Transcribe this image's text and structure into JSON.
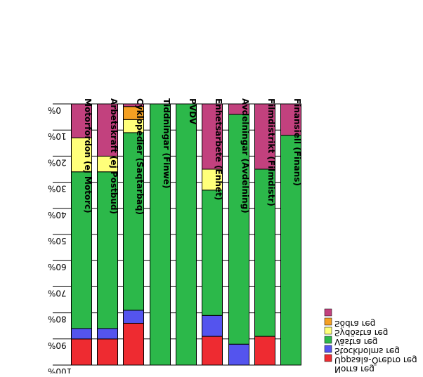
{
  "chart_data": {
    "type": "bar",
    "stacked": true,
    "orientation": "vertical",
    "rendering": "mirrored (image appears rotated 180° / mirrored horizontally)",
    "grid": true,
    "legend_position": "bottom-right",
    "y_ticks": [
      "0%",
      "10%",
      "20%",
      "30%",
      "40%",
      "50%",
      "60%",
      "70%",
      "80%",
      "90%",
      "100%"
    ],
    "ylim": [
      0,
      100
    ],
    "categories": [
      "Motorfordon (ej Motorc)",
      "Arbetskraft (ej Postbud)",
      "Cyklopedier (Saqtarbaq)",
      "Tiddningar (Finwe)",
      "PVDV",
      "Enhetsarbete (Enhet)",
      "Avdelningar (Avdelning)",
      "Filmdistrikt (Filmdistr)",
      "Finansiell (Finans)"
    ],
    "series": [
      {
        "name": "Norra reg",
        "color": "#ee2b31",
        "values": [
          10,
          10,
          16,
          0,
          0,
          11,
          0,
          11,
          0
        ]
      },
      {
        "name": "Uppsala-Örebro reg",
        "color": "#5454ee",
        "values": [
          4,
          4,
          5,
          0,
          0,
          8,
          8,
          0,
          0
        ]
      },
      {
        "name": "Stockholms reg",
        "color": "#2cb84a",
        "values": [
          60,
          60,
          68,
          100,
          100,
          48,
          88,
          64,
          88
        ]
      },
      {
        "name": "Västra reg",
        "color": "#ffff7a",
        "values": [
          13,
          6,
          5,
          0,
          0,
          8,
          0,
          0,
          0
        ]
      },
      {
        "name": "Sydöstra reg",
        "color": "#f5a023",
        "values": [
          0,
          0,
          5,
          0,
          0,
          0,
          0,
          0,
          0
        ]
      },
      {
        "name": "Södra reg",
        "color": "#c2417e",
        "values": [
          13,
          20,
          1,
          0,
          0,
          25,
          4,
          25,
          12
        ]
      }
    ]
  }
}
